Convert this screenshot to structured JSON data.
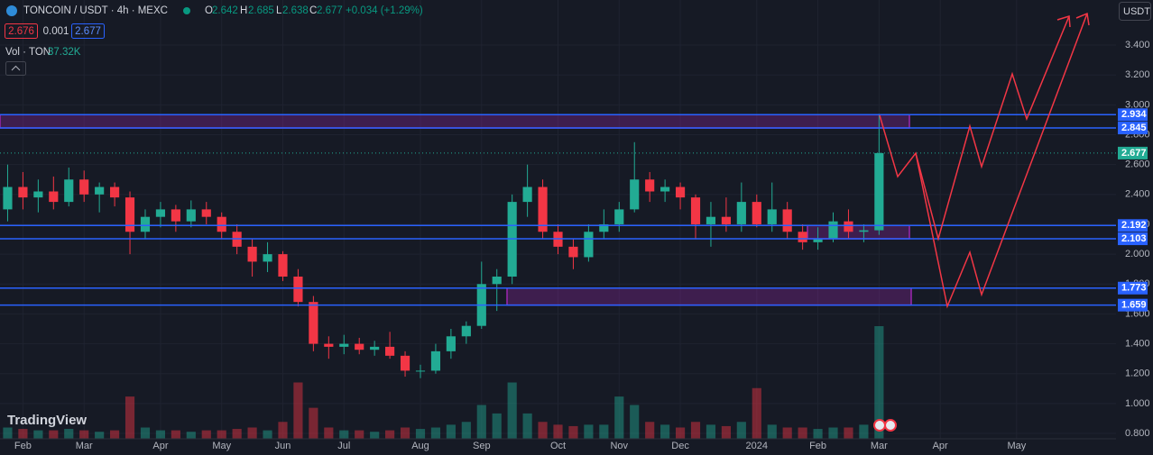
{
  "header": {
    "symbol": "TONCOIN / USDT · 4h · MEXC",
    "o_label": "O",
    "o": 2.642,
    "h_label": "H",
    "h": 2.685,
    "l_label": "L",
    "l": 2.638,
    "c_label": "C",
    "c": 2.677,
    "change": "+0.034 (+1.29%)",
    "bid": 2.676,
    "spread": 0.001,
    "ask": 2.677,
    "volume_label": "Vol · TON",
    "volume_value": "37.32K",
    "currency": "USDT",
    "logo": "TradingView"
  },
  "chart_data": {
    "type": "candlestick",
    "categories": [
      null,
      "Feb",
      null,
      null,
      null,
      "Mar",
      null,
      null,
      null,
      null,
      "Apr",
      null,
      null,
      null,
      "May",
      null,
      null,
      null,
      "Jun",
      null,
      null,
      null,
      "Jul",
      null,
      null,
      null,
      null,
      "Aug",
      null,
      null,
      null,
      "Sep",
      null,
      null,
      null,
      null,
      "Oct",
      null,
      null,
      null,
      "Nov",
      null,
      null,
      null,
      "Dec",
      null,
      null,
      null,
      null,
      "2024",
      null,
      null,
      null,
      "Feb",
      null,
      null,
      null,
      "Mar",
      null,
      null,
      null,
      "Apr",
      null,
      null,
      null,
      null,
      "May",
      null,
      null,
      null,
      null,
      null,
      null
    ],
    "open": [
      2.3,
      2.45,
      2.38,
      2.42,
      2.35,
      2.5,
      2.4,
      2.45,
      2.38,
      2.15,
      2.25,
      2.3,
      2.22,
      2.3,
      2.25,
      2.15,
      2.05,
      1.95,
      2.0,
      1.85,
      1.68,
      1.4,
      1.38,
      1.4,
      1.36,
      1.38,
      1.32,
      1.22,
      1.22,
      1.35,
      1.45,
      1.52,
      1.8,
      1.85,
      2.35,
      2.45,
      2.15,
      2.05,
      1.98,
      2.15,
      2.2,
      2.3,
      2.5,
      2.42,
      2.45,
      2.38,
      2.2,
      2.25,
      2.2,
      2.35,
      2.2,
      2.3,
      2.15,
      2.08,
      2.1,
      2.22,
      2.15,
      2.16,
      null,
      null,
      null,
      null,
      null,
      null,
      null,
      null,
      null,
      null,
      null,
      null,
      null,
      null,
      null
    ],
    "high": [
      2.6,
      2.55,
      2.5,
      2.52,
      2.58,
      2.56,
      2.48,
      2.48,
      2.42,
      2.3,
      2.35,
      2.33,
      2.36,
      2.35,
      2.28,
      2.2,
      2.1,
      2.08,
      2.02,
      1.9,
      1.72,
      1.45,
      1.46,
      1.44,
      1.42,
      1.48,
      1.35,
      1.26,
      1.4,
      1.5,
      1.55,
      1.95,
      1.9,
      2.4,
      2.6,
      2.5,
      2.2,
      2.1,
      2.2,
      2.3,
      2.35,
      2.75,
      2.55,
      2.5,
      2.48,
      2.4,
      2.35,
      2.38,
      2.48,
      2.4,
      2.48,
      2.35,
      2.2,
      2.18,
      2.28,
      2.3,
      2.2,
      2.94,
      null,
      null,
      null,
      null,
      null,
      null,
      null,
      null,
      null,
      null,
      null,
      null,
      null,
      null,
      null
    ],
    "low": [
      2.22,
      2.3,
      2.28,
      2.3,
      2.32,
      2.35,
      2.28,
      2.32,
      2.0,
      2.1,
      2.18,
      2.15,
      2.18,
      2.2,
      2.1,
      2.0,
      1.85,
      1.88,
      1.82,
      1.65,
      1.35,
      1.3,
      1.33,
      1.33,
      1.32,
      1.3,
      1.18,
      1.17,
      1.2,
      1.3,
      1.4,
      1.5,
      1.62,
      1.8,
      2.25,
      2.1,
      2.0,
      1.9,
      1.95,
      2.1,
      2.15,
      2.28,
      2.35,
      2.35,
      2.3,
      2.1,
      2.05,
      2.15,
      2.15,
      2.18,
      2.15,
      2.1,
      2.03,
      2.03,
      2.08,
      2.1,
      2.08,
      2.13,
      null,
      null,
      null,
      null,
      null,
      null,
      null,
      null,
      null,
      null,
      null,
      null,
      null,
      null,
      null
    ],
    "close": [
      2.45,
      2.38,
      2.42,
      2.35,
      2.5,
      2.4,
      2.45,
      2.38,
      2.15,
      2.25,
      2.3,
      2.22,
      2.3,
      2.25,
      2.15,
      2.05,
      1.95,
      2.0,
      1.85,
      1.68,
      1.4,
      1.38,
      1.4,
      1.36,
      1.38,
      1.32,
      1.22,
      1.22,
      1.35,
      1.45,
      1.52,
      1.8,
      1.85,
      2.35,
      2.45,
      2.15,
      2.05,
      1.98,
      2.15,
      2.2,
      2.3,
      2.5,
      2.42,
      2.45,
      2.38,
      2.2,
      2.25,
      2.2,
      2.35,
      2.2,
      2.3,
      2.15,
      2.08,
      2.1,
      2.22,
      2.15,
      2.16,
      2.677,
      null,
      null,
      null,
      null,
      null,
      null,
      null,
      null,
      null,
      null,
      null,
      null,
      null,
      null,
      null
    ],
    "volume": [
      40,
      35,
      30,
      30,
      35,
      30,
      25,
      30,
      150,
      40,
      30,
      30,
      25,
      30,
      30,
      35,
      40,
      30,
      60,
      200,
      110,
      40,
      30,
      30,
      25,
      30,
      40,
      35,
      40,
      50,
      60,
      120,
      90,
      200,
      90,
      60,
      50,
      45,
      50,
      50,
      150,
      120,
      60,
      50,
      40,
      60,
      50,
      45,
      60,
      180,
      50,
      40,
      40,
      35,
      40,
      40,
      50,
      400,
      null,
      null,
      null,
      null,
      null,
      null,
      null,
      null,
      null,
      null,
      null,
      null,
      null,
      null,
      null
    ],
    "up_color": "#22ab94",
    "down_color": "#f23645",
    "level_color": "#2962ff",
    "ylim": [
      0.764,
      3.702
    ],
    "yticks": [
      {
        "value": 0.8,
        "label": "0.800"
      },
      {
        "value": 1.0,
        "label": "1.000"
      },
      {
        "value": 1.2,
        "label": "1.200"
      },
      {
        "value": 1.4,
        "label": "1.400"
      },
      {
        "value": 1.6,
        "label": "1.600"
      },
      {
        "value": 1.8,
        "label": "1.800"
      },
      {
        "value": 2.0,
        "label": "2.000"
      },
      {
        "value": 2.2,
        "label": "2.200"
      },
      {
        "value": 2.4,
        "label": "2.400"
      },
      {
        "value": 2.6,
        "label": "2.600"
      },
      {
        "value": 2.8,
        "label": "2.800"
      },
      {
        "value": 3.0,
        "label": "3.000"
      },
      {
        "value": 3.2,
        "label": "3.200"
      },
      {
        "value": 3.4,
        "label": "3.400"
      }
    ],
    "grid": true,
    "levels": [
      2.934,
      2.845,
      2.192,
      2.103,
      1.773,
      1.659
    ],
    "last_price": 2.677
  }
}
